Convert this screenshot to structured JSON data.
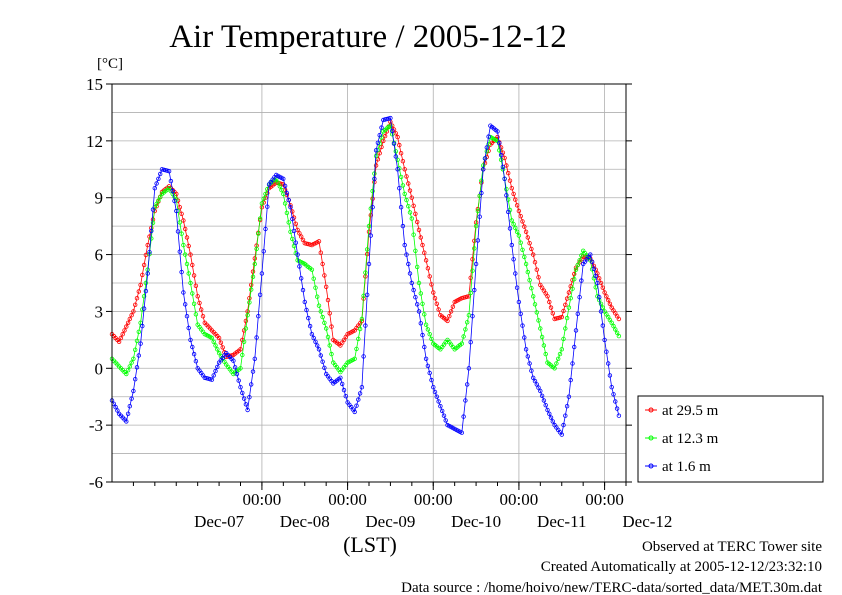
{
  "chart_data": {
    "type": "line",
    "title": "Air Temperature / 2005-12-12",
    "ylabel": "[°C]",
    "xlabel": "(LST)",
    "ylim": [
      -6,
      15
    ],
    "xlim_hours": [
      -42,
      102
    ],
    "y_ticks": [
      15,
      12,
      9,
      6,
      3,
      0,
      -3,
      -6
    ],
    "grid": true,
    "legend_position": "right",
    "x_ticks": [
      {
        "time": "00:00",
        "day": "Dec-07",
        "x": 0
      },
      {
        "time": "00:00",
        "day": "Dec-08",
        "x": 24
      },
      {
        "time": "00:00",
        "day": "Dec-09",
        "x": 48
      },
      {
        "time": "00:00",
        "day": "Dec-10",
        "x": 72
      },
      {
        "time": "00:00",
        "day": "Dec-11",
        "x": 96
      },
      {
        "time": "",
        "day": "Dec-12",
        "x": 120
      }
    ],
    "series": [
      {
        "name": "at 29.5 m",
        "color": "#ff0000",
        "points": [
          [
            -42,
            1.8
          ],
          [
            -40,
            1.4
          ],
          [
            -38,
            2.2
          ],
          [
            -36,
            3
          ],
          [
            -34,
            4.4
          ],
          [
            -32,
            6.5
          ],
          [
            -30,
            8.3
          ],
          [
            -28,
            9.3
          ],
          [
            -26,
            9.6
          ],
          [
            -24,
            9.2
          ],
          [
            -22,
            7.8
          ],
          [
            -20,
            6
          ],
          [
            -18,
            3.8
          ],
          [
            -16,
            2.4
          ],
          [
            -14,
            2
          ],
          [
            -12,
            1.6
          ],
          [
            -10,
            0.6
          ],
          [
            -8,
            0.7
          ],
          [
            -6,
            1
          ],
          [
            -4,
            3
          ],
          [
            -2,
            5.8
          ],
          [
            0,
            8.5
          ],
          [
            2,
            9.5
          ],
          [
            4,
            9.8
          ],
          [
            6,
            9.7
          ],
          [
            8,
            8.6
          ],
          [
            10,
            7.3
          ],
          [
            12,
            6.6
          ],
          [
            14,
            6.5
          ],
          [
            16,
            6.7
          ],
          [
            18,
            4.3
          ],
          [
            20,
            1.5
          ],
          [
            22,
            1.2
          ],
          [
            24,
            1.8
          ],
          [
            26,
            2
          ],
          [
            28,
            2.5
          ],
          [
            30,
            7.2
          ],
          [
            32,
            10.7
          ],
          [
            34,
            12
          ],
          [
            36,
            13
          ],
          [
            38,
            12.2
          ],
          [
            40,
            10.5
          ],
          [
            42,
            9
          ],
          [
            44,
            7.3
          ],
          [
            46,
            5.7
          ],
          [
            48,
            4
          ],
          [
            50,
            2.8
          ],
          [
            52,
            2.5
          ],
          [
            54,
            3.5
          ],
          [
            56,
            3.7
          ],
          [
            58,
            3.8
          ],
          [
            60,
            7.7
          ],
          [
            62,
            10.5
          ],
          [
            64,
            11.8
          ],
          [
            66,
            12.2
          ],
          [
            68,
            11.1
          ],
          [
            70,
            9.5
          ],
          [
            72,
            8.3
          ],
          [
            74,
            7.2
          ],
          [
            76,
            6
          ],
          [
            78,
            4.4
          ],
          [
            80,
            3.8
          ],
          [
            82,
            2.6
          ],
          [
            84,
            2.7
          ],
          [
            86,
            4
          ],
          [
            88,
            5.3
          ],
          [
            90,
            5.9
          ],
          [
            92,
            5.8
          ],
          [
            94,
            5
          ],
          [
            96,
            4
          ],
          [
            98,
            3.2
          ],
          [
            100,
            2.6
          ]
        ]
      },
      {
        "name": "at 12.3 m",
        "color": "#00ff00",
        "points": [
          [
            -42,
            0.5
          ],
          [
            -40,
            0.1
          ],
          [
            -38,
            -0.3
          ],
          [
            -36,
            0.5
          ],
          [
            -34,
            2.4
          ],
          [
            -32,
            5.2
          ],
          [
            -30,
            8.5
          ],
          [
            -28,
            9.2
          ],
          [
            -26,
            9.5
          ],
          [
            -24,
            8.9
          ],
          [
            -22,
            6.5
          ],
          [
            -20,
            4.5
          ],
          [
            -18,
            2.3
          ],
          [
            -16,
            1.8
          ],
          [
            -14,
            1.6
          ],
          [
            -12,
            0.8
          ],
          [
            -10,
            0.2
          ],
          [
            -8,
            -0.3
          ],
          [
            -6,
            0
          ],
          [
            -4,
            2.8
          ],
          [
            -2,
            5.5
          ],
          [
            0,
            8.7
          ],
          [
            2,
            9.7
          ],
          [
            4,
            10
          ],
          [
            6,
            9.2
          ],
          [
            8,
            7.2
          ],
          [
            10,
            5.7
          ],
          [
            12,
            5.5
          ],
          [
            14,
            5.2
          ],
          [
            16,
            3.3
          ],
          [
            18,
            2.1
          ],
          [
            20,
            0.3
          ],
          [
            22,
            -0.2
          ],
          [
            24,
            0.3
          ],
          [
            26,
            0.5
          ],
          [
            28,
            2.6
          ],
          [
            30,
            7.5
          ],
          [
            32,
            11.2
          ],
          [
            34,
            12.5
          ],
          [
            36,
            12.8
          ],
          [
            38,
            11
          ],
          [
            40,
            9.2
          ],
          [
            42,
            7.9
          ],
          [
            44,
            4.5
          ],
          [
            46,
            2.3
          ],
          [
            48,
            1.3
          ],
          [
            50,
            1
          ],
          [
            52,
            1.5
          ],
          [
            54,
            1
          ],
          [
            56,
            1.3
          ],
          [
            58,
            2.8
          ],
          [
            60,
            7.5
          ],
          [
            62,
            10.7
          ],
          [
            64,
            12.2
          ],
          [
            66,
            12
          ],
          [
            68,
            10
          ],
          [
            70,
            7.8
          ],
          [
            72,
            7
          ],
          [
            74,
            5.5
          ],
          [
            76,
            3.8
          ],
          [
            78,
            2.1
          ],
          [
            80,
            0.3
          ],
          [
            82,
            0
          ],
          [
            84,
            1
          ],
          [
            86,
            3.2
          ],
          [
            88,
            5.2
          ],
          [
            90,
            6.2
          ],
          [
            92,
            5.7
          ],
          [
            94,
            3.8
          ],
          [
            96,
            3
          ],
          [
            98,
            2.4
          ],
          [
            100,
            1.7
          ]
        ]
      },
      {
        "name": "at 1.6 m",
        "color": "#0000ff",
        "points": [
          [
            -42,
            -1.7
          ],
          [
            -40,
            -2.4
          ],
          [
            -38,
            -2.8
          ],
          [
            -36,
            -1.2
          ],
          [
            -34,
            1.3
          ],
          [
            -32,
            5
          ],
          [
            -30,
            9.5
          ],
          [
            -28,
            10.5
          ],
          [
            -26,
            10.4
          ],
          [
            -24,
            8.3
          ],
          [
            -22,
            4
          ],
          [
            -20,
            1.5
          ],
          [
            -18,
            0
          ],
          [
            -16,
            -0.5
          ],
          [
            -14,
            -0.6
          ],
          [
            -12,
            0.3
          ],
          [
            -10,
            0.8
          ],
          [
            -8,
            0.4
          ],
          [
            -6,
            -1
          ],
          [
            -4,
            -2.2
          ],
          [
            -2,
            0.5
          ],
          [
            0,
            5
          ],
          [
            2,
            9.7
          ],
          [
            4,
            10.2
          ],
          [
            6,
            10
          ],
          [
            8,
            8.5
          ],
          [
            10,
            6
          ],
          [
            12,
            3.5
          ],
          [
            14,
            1.8
          ],
          [
            16,
            1
          ],
          [
            18,
            -0.3
          ],
          [
            20,
            -0.8
          ],
          [
            22,
            -0.5
          ],
          [
            24,
            -1.8
          ],
          [
            26,
            -2.3
          ],
          [
            28,
            -1
          ],
          [
            30,
            5.5
          ],
          [
            32,
            11.5
          ],
          [
            34,
            13.1
          ],
          [
            36,
            13.2
          ],
          [
            38,
            10.5
          ],
          [
            40,
            6.5
          ],
          [
            42,
            4.5
          ],
          [
            44,
            3
          ],
          [
            46,
            0.5
          ],
          [
            48,
            -1
          ],
          [
            50,
            -2
          ],
          [
            52,
            -3
          ],
          [
            54,
            -3.2
          ],
          [
            56,
            -3.4
          ],
          [
            58,
            0
          ],
          [
            60,
            5.5
          ],
          [
            62,
            10.5
          ],
          [
            64,
            12.8
          ],
          [
            66,
            12.5
          ],
          [
            68,
            10
          ],
          [
            70,
            6.5
          ],
          [
            72,
            3.5
          ],
          [
            74,
            1
          ],
          [
            76,
            -0.5
          ],
          [
            78,
            -1.2
          ],
          [
            80,
            -2.2
          ],
          [
            82,
            -3
          ],
          [
            84,
            -3.5
          ],
          [
            86,
            -1.5
          ],
          [
            88,
            2
          ],
          [
            90,
            5.5
          ],
          [
            92,
            6
          ],
          [
            94,
            4.5
          ],
          [
            96,
            1.5
          ],
          [
            98,
            -1
          ],
          [
            100,
            -2.5
          ]
        ]
      }
    ]
  },
  "footer": {
    "observed": "Observed at TERC Tower site",
    "created": "Created Automatically at 2005-12-12/23:32:10",
    "source": "Data source : /home/hoivo/new/TERC-data/sorted_data/MET.30m.dat"
  }
}
